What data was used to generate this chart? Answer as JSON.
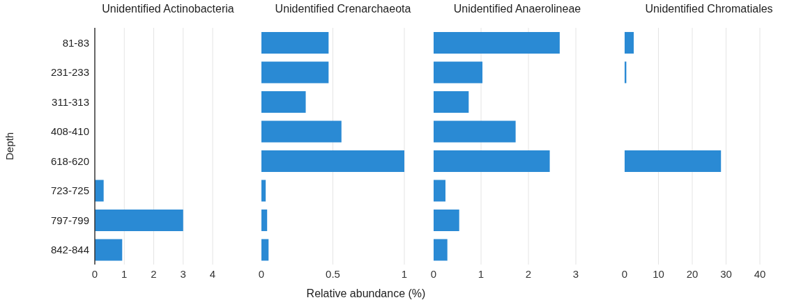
{
  "chart_data": [
    {
      "type": "bar",
      "orientation": "horizontal",
      "title": "Unidentified Actinobacteria",
      "ylabel": "Depth",
      "categories": [
        "81-83",
        "231-233",
        "311-313",
        "408-410",
        "618-620",
        "723-725",
        "797-799",
        "842-844"
      ],
      "values": [
        0,
        0,
        0,
        0,
        0,
        0.3,
        3.0,
        0.93
      ],
      "color": "#2a8ad4",
      "xlim": [
        0,
        4
      ],
      "xticks": [
        0,
        1,
        2,
        3,
        4
      ],
      "grid": "x"
    },
    {
      "type": "bar",
      "orientation": "horizontal",
      "title": "Unidentified Crenarchaeota",
      "xlabel": "Relative abundance (%)",
      "values": [
        0.47,
        0.47,
        0.31,
        0.56,
        1.0,
        0.03,
        0.04,
        0.05
      ],
      "color": "#2a8ad4",
      "xlim": [
        0,
        1
      ],
      "xticks": [
        0,
        0.5,
        1
      ],
      "grid": "x",
      "tick_labels": "x"
    },
    {
      "type": "bar",
      "orientation": "horizontal",
      "title": "Unidentified Anaerolineae",
      "values": [
        2.66,
        1.03,
        0.74,
        1.73,
        2.45,
        0.25,
        0.54,
        0.29
      ],
      "color": "#2a8ad4",
      "xlim": [
        0,
        3
      ],
      "xticks": [
        0,
        1,
        2,
        3
      ],
      "grid": "x",
      "tick_labels": "x"
    },
    {
      "type": "bar",
      "orientation": "horizontal",
      "title": "Unidentified Chromatiales",
      "values": [
        2.7,
        0.5,
        0,
        0,
        28.5,
        0,
        0,
        0
      ],
      "color": "#2a8ad4",
      "xlim": [
        0,
        40
      ],
      "xticks": [
        0,
        10,
        20,
        30,
        40
      ],
      "grid": "x",
      "tick_labels": "x"
    }
  ]
}
